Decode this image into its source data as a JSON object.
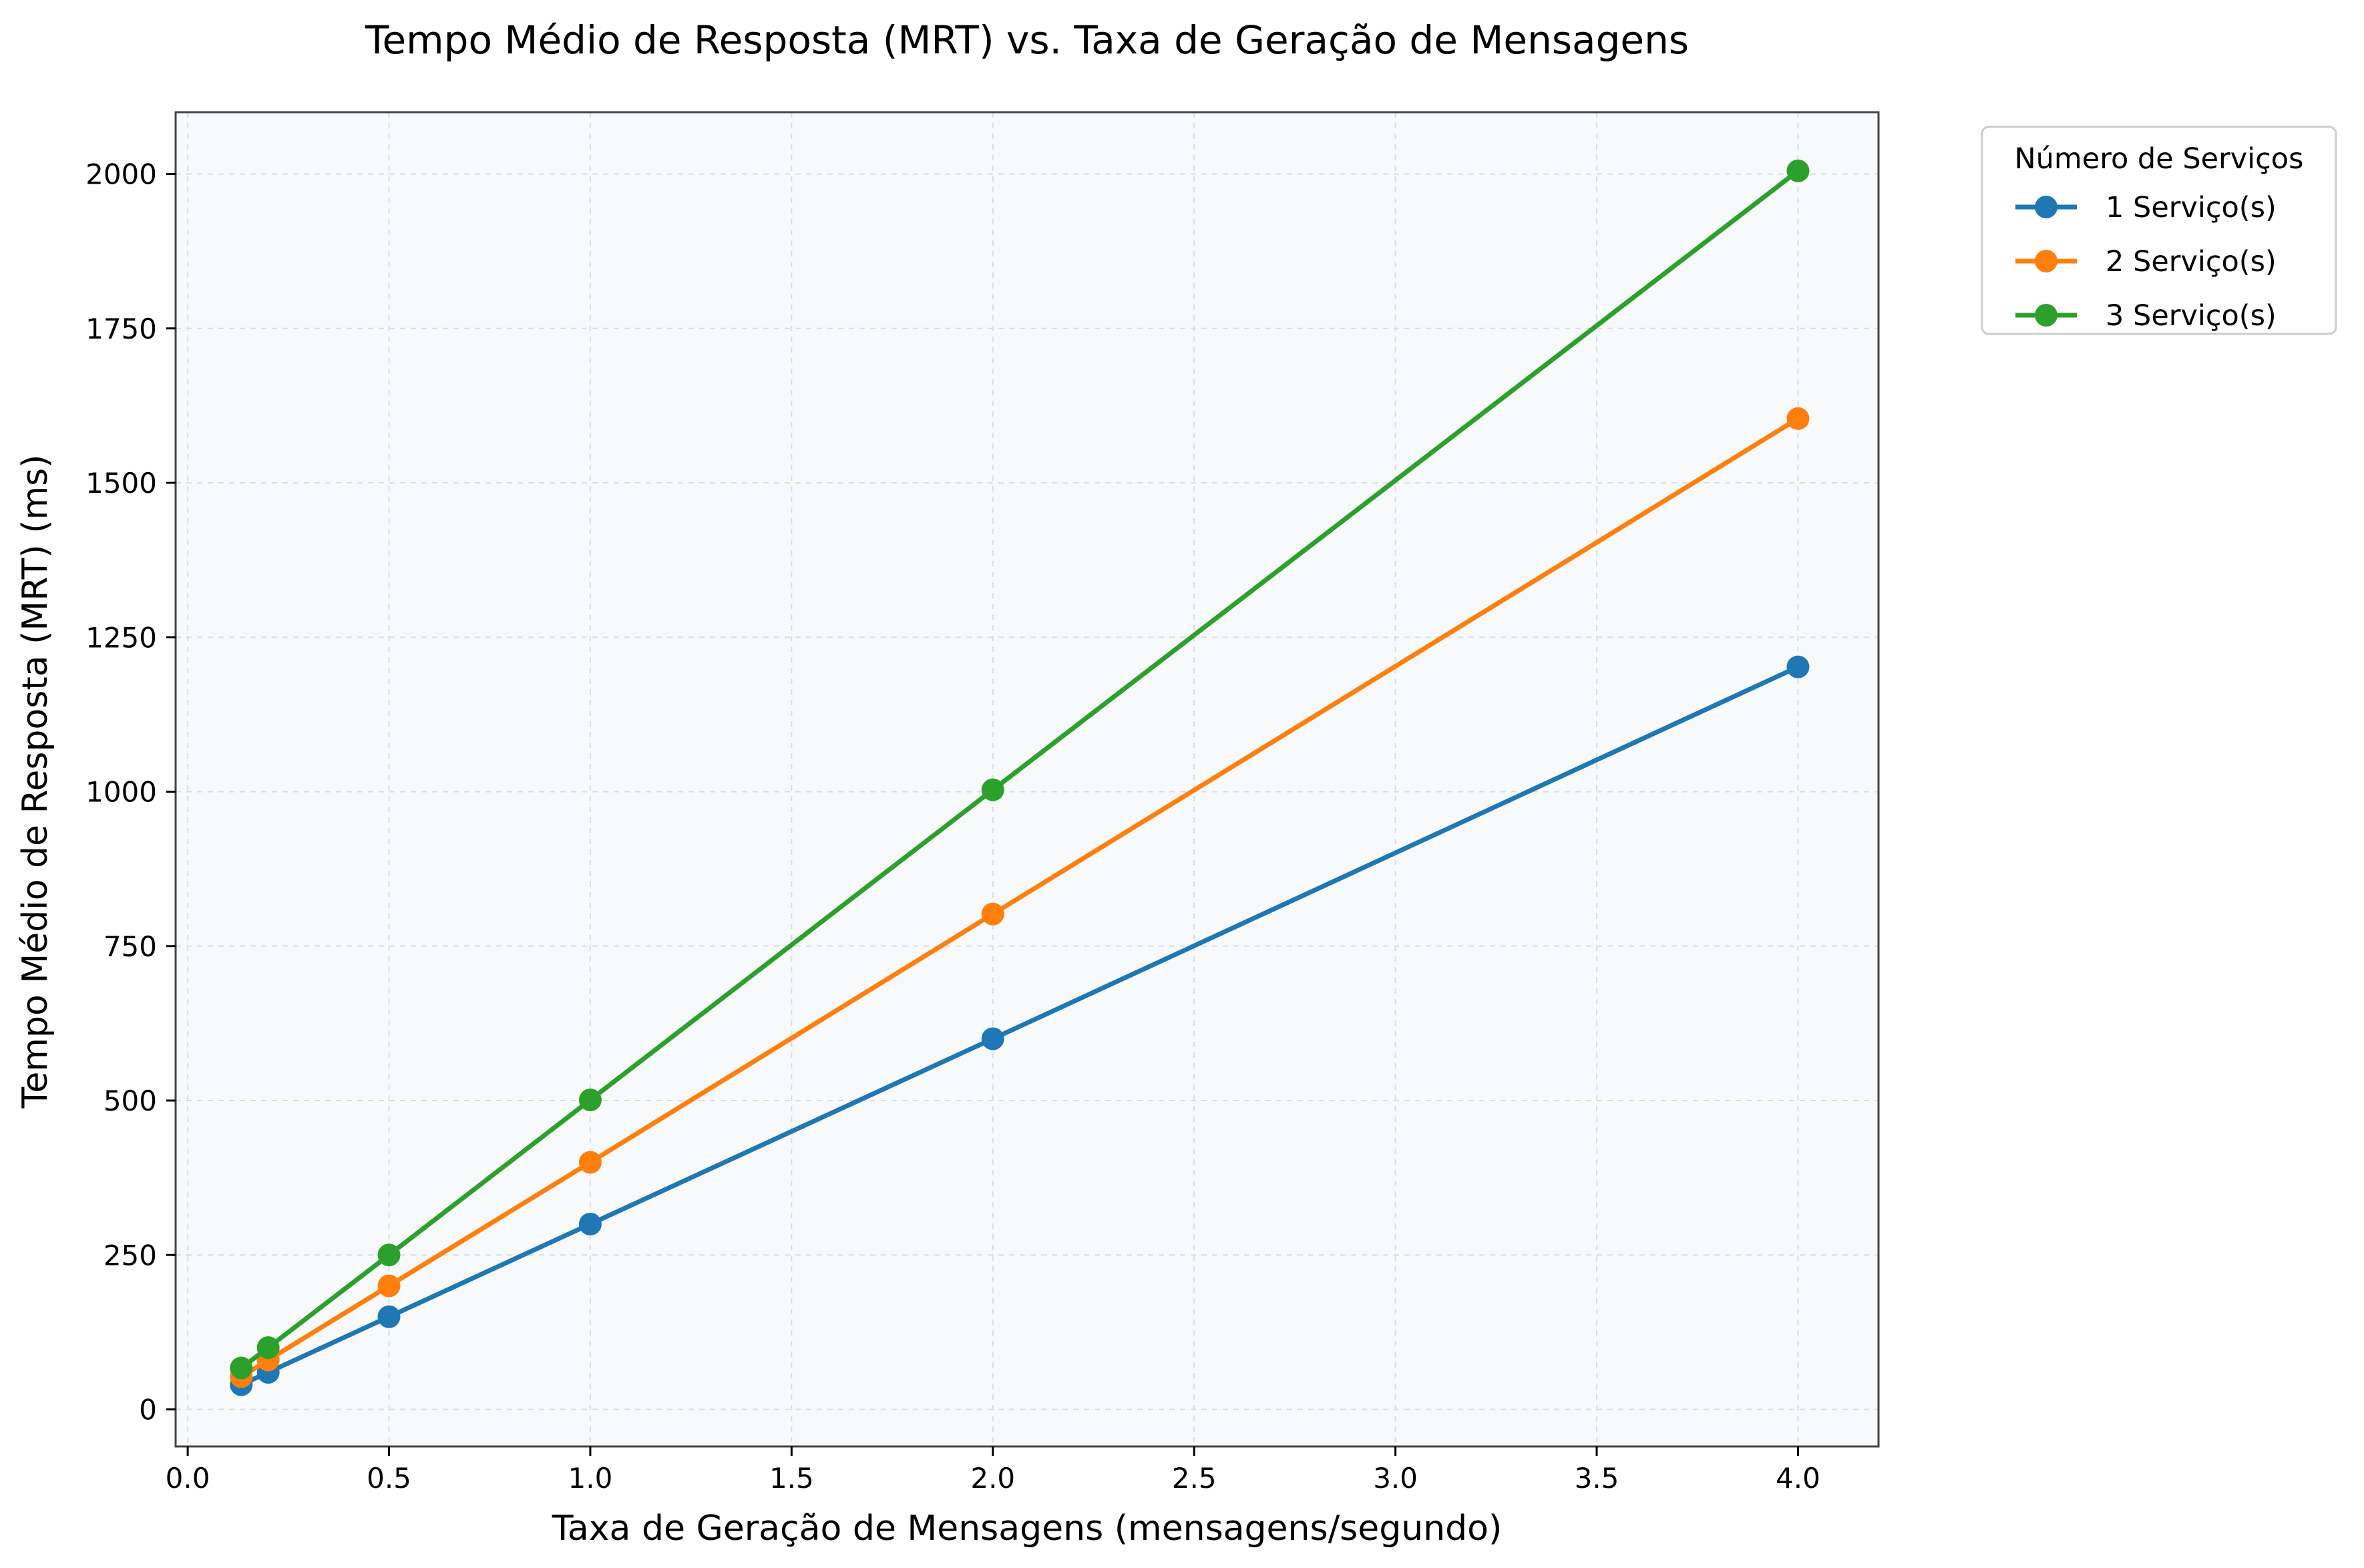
{
  "chart_data": {
    "type": "line",
    "title": "Tempo Médio de Resposta (MRT) vs. Taxa de Geração de Mensagens",
    "xlabel": "Taxa de Geração de Mensagens (mensagens/segundo)",
    "ylabel": "Tempo Médio de Resposta (MRT) (ms)",
    "xlim": [
      -0.03,
      4.2
    ],
    "ylim": [
      -60,
      2100
    ],
    "xticks": [
      0.0,
      0.5,
      1.0,
      1.5,
      2.0,
      2.5,
      3.0,
      3.5,
      4.0
    ],
    "xtick_labels": [
      "0.0",
      "0.5",
      "1.0",
      "1.5",
      "2.0",
      "2.5",
      "3.0",
      "3.5",
      "4.0"
    ],
    "yticks": [
      0,
      250,
      500,
      750,
      1000,
      1250,
      1500,
      1750,
      2000
    ],
    "ytick_labels": [
      "0",
      "250",
      "500",
      "750",
      "1000",
      "1250",
      "1500",
      "1750",
      "2000"
    ],
    "grid": true,
    "legend_title": "Número de Serviços",
    "legend_position": "outside-top-right",
    "x": [
      0.133,
      0.2,
      0.5,
      1.0,
      2.0,
      4.0
    ],
    "series": [
      {
        "name": "1 Serviço(s)",
        "color": "#1f77b4",
        "values": [
          40,
          60,
          150,
          300,
          600,
          1202
        ]
      },
      {
        "name": "2 Serviço(s)",
        "color": "#ff7f0e",
        "values": [
          53,
          80,
          200,
          400,
          802,
          1604
        ]
      },
      {
        "name": "3 Serviço(s)",
        "color": "#2ca02c",
        "values": [
          67,
          100,
          250,
          501,
          1003,
          2005
        ]
      }
    ],
    "plot_background": "#f7f9fb"
  }
}
